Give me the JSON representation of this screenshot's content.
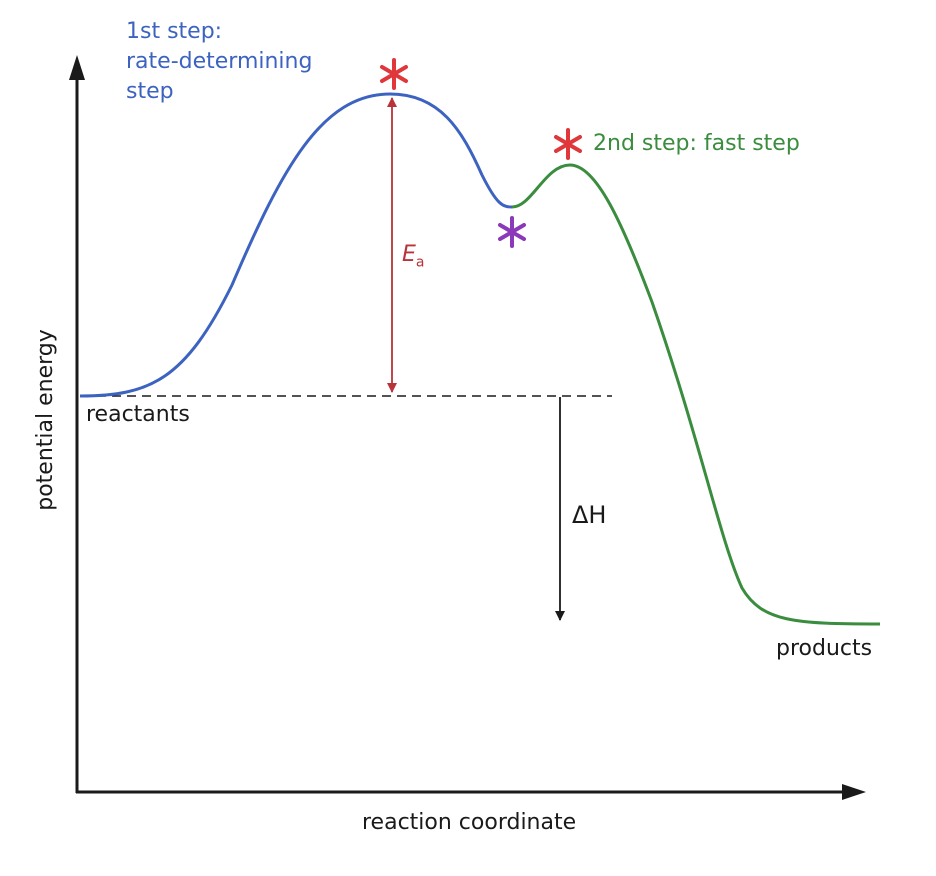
{
  "axes": {
    "y_label": "potential energy",
    "x_label": "reaction coordinate"
  },
  "labels": {
    "step1_line1": "1st step:",
    "step1_line2": "rate-determining",
    "step1_line3": "step",
    "step2": "2nd step: fast step",
    "reactants": "reactants",
    "products": "products",
    "ea_main": "E",
    "ea_sub": "a",
    "delta_h": "ΔH"
  },
  "colors": {
    "step1": "#3d63c0",
    "step2": "#3a8c3e",
    "transition_state": "#e0373a",
    "intermediate": "#8a3ab8",
    "ea_arrow": "#b8333a",
    "axis": "#1a1a1a"
  }
}
